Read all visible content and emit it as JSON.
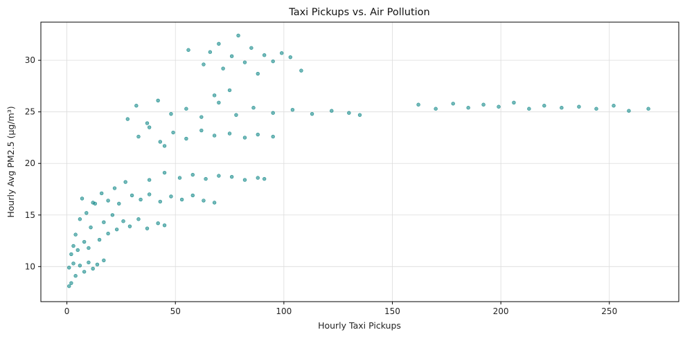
{
  "chart_data": {
    "type": "scatter",
    "title": "Taxi Pickups vs. Air Pollution",
    "xlabel": "Hourly Taxi Pickups",
    "ylabel": "Hourly Avg PM2.5 (µg/m³)",
    "xlim": [
      -12,
      282
    ],
    "ylim": [
      6.6,
      33.7
    ],
    "x_ticks": [
      0,
      50,
      100,
      150,
      200,
      250
    ],
    "y_ticks": [
      10,
      15,
      20,
      25,
      30
    ],
    "grid": true,
    "point_color": "#008080",
    "point_opacity": 0.55,
    "series": [
      {
        "values": [
          {
            "x": 1,
            "y": 9.9
          },
          {
            "x": 2,
            "y": 11.2
          },
          {
            "x": 2,
            "y": 8.4
          },
          {
            "x": 3,
            "y": 10.3
          },
          {
            "x": 4,
            "y": 9.1
          },
          {
            "x": 5,
            "y": 11.6
          },
          {
            "x": 6,
            "y": 10.1
          },
          {
            "x": 8,
            "y": 9.5
          },
          {
            "x": 10,
            "y": 10.4
          },
          {
            "x": 12,
            "y": 9.8
          },
          {
            "x": 14,
            "y": 10.2
          },
          {
            "x": 17,
            "y": 10.6
          },
          {
            "x": 1,
            "y": 8.1
          },
          {
            "x": 3,
            "y": 12.0
          },
          {
            "x": 4,
            "y": 13.1
          },
          {
            "x": 6,
            "y": 14.6
          },
          {
            "x": 8,
            "y": 12.4
          },
          {
            "x": 9,
            "y": 15.2
          },
          {
            "x": 11,
            "y": 13.8
          },
          {
            "x": 13,
            "y": 16.1
          },
          {
            "x": 15,
            "y": 12.6
          },
          {
            "x": 17,
            "y": 14.3
          },
          {
            "x": 19,
            "y": 13.2
          },
          {
            "x": 21,
            "y": 15.0
          },
          {
            "x": 23,
            "y": 13.6
          },
          {
            "x": 26,
            "y": 14.4
          },
          {
            "x": 29,
            "y": 13.9
          },
          {
            "x": 33,
            "y": 14.6
          },
          {
            "x": 37,
            "y": 13.7
          },
          {
            "x": 42,
            "y": 14.2
          },
          {
            "x": 45,
            "y": 14.0
          },
          {
            "x": 10,
            "y": 11.8
          },
          {
            "x": 7,
            "y": 16.6
          },
          {
            "x": 12,
            "y": 16.2
          },
          {
            "x": 16,
            "y": 17.1
          },
          {
            "x": 19,
            "y": 16.4
          },
          {
            "x": 22,
            "y": 17.6
          },
          {
            "x": 24,
            "y": 16.1
          },
          {
            "x": 27,
            "y": 18.2
          },
          {
            "x": 30,
            "y": 16.9
          },
          {
            "x": 34,
            "y": 16.5
          },
          {
            "x": 38,
            "y": 17.0
          },
          {
            "x": 43,
            "y": 16.3
          },
          {
            "x": 48,
            "y": 16.8
          },
          {
            "x": 53,
            "y": 16.5
          },
          {
            "x": 58,
            "y": 16.9
          },
          {
            "x": 63,
            "y": 16.4
          },
          {
            "x": 68,
            "y": 16.2
          },
          {
            "x": 38,
            "y": 18.4
          },
          {
            "x": 45,
            "y": 19.1
          },
          {
            "x": 52,
            "y": 18.6
          },
          {
            "x": 58,
            "y": 18.9
          },
          {
            "x": 64,
            "y": 18.5
          },
          {
            "x": 70,
            "y": 18.8
          },
          {
            "x": 76,
            "y": 18.7
          },
          {
            "x": 82,
            "y": 18.4
          },
          {
            "x": 88,
            "y": 18.6
          },
          {
            "x": 91,
            "y": 18.5
          },
          {
            "x": 28,
            "y": 24.3
          },
          {
            "x": 32,
            "y": 25.6
          },
          {
            "x": 37,
            "y": 23.9
          },
          {
            "x": 42,
            "y": 26.1
          },
          {
            "x": 48,
            "y": 24.8
          },
          {
            "x": 55,
            "y": 25.3
          },
          {
            "x": 62,
            "y": 24.5
          },
          {
            "x": 70,
            "y": 25.9
          },
          {
            "x": 78,
            "y": 24.7
          },
          {
            "x": 86,
            "y": 25.4
          },
          {
            "x": 95,
            "y": 24.9
          },
          {
            "x": 104,
            "y": 25.2
          },
          {
            "x": 113,
            "y": 24.8
          },
          {
            "x": 122,
            "y": 25.1
          },
          {
            "x": 130,
            "y": 24.9
          },
          {
            "x": 135,
            "y": 24.7
          },
          {
            "x": 68,
            "y": 26.6
          },
          {
            "x": 75,
            "y": 27.1
          },
          {
            "x": 33,
            "y": 22.6
          },
          {
            "x": 38,
            "y": 23.5
          },
          {
            "x": 43,
            "y": 22.1
          },
          {
            "x": 49,
            "y": 23.0
          },
          {
            "x": 55,
            "y": 22.4
          },
          {
            "x": 62,
            "y": 23.2
          },
          {
            "x": 68,
            "y": 22.7
          },
          {
            "x": 75,
            "y": 22.9
          },
          {
            "x": 82,
            "y": 22.5
          },
          {
            "x": 88,
            "y": 22.8
          },
          {
            "x": 95,
            "y": 22.6
          },
          {
            "x": 45,
            "y": 21.7
          },
          {
            "x": 63,
            "y": 29.6
          },
          {
            "x": 66,
            "y": 30.8
          },
          {
            "x": 70,
            "y": 31.6
          },
          {
            "x": 72,
            "y": 29.2
          },
          {
            "x": 76,
            "y": 30.4
          },
          {
            "x": 79,
            "y": 32.4
          },
          {
            "x": 82,
            "y": 29.8
          },
          {
            "x": 85,
            "y": 31.2
          },
          {
            "x": 88,
            "y": 28.7
          },
          {
            "x": 91,
            "y": 30.5
          },
          {
            "x": 95,
            "y": 29.9
          },
          {
            "x": 99,
            "y": 30.7
          },
          {
            "x": 103,
            "y": 30.3
          },
          {
            "x": 108,
            "y": 29.0
          },
          {
            "x": 56,
            "y": 31.0
          },
          {
            "x": 162,
            "y": 25.7
          },
          {
            "x": 170,
            "y": 25.3
          },
          {
            "x": 178,
            "y": 25.8
          },
          {
            "x": 185,
            "y": 25.4
          },
          {
            "x": 192,
            "y": 25.7
          },
          {
            "x": 199,
            "y": 25.5
          },
          {
            "x": 206,
            "y": 25.9
          },
          {
            "x": 213,
            "y": 25.3
          },
          {
            "x": 220,
            "y": 25.6
          },
          {
            "x": 228,
            "y": 25.4
          },
          {
            "x": 236,
            "y": 25.5
          },
          {
            "x": 244,
            "y": 25.3
          },
          {
            "x": 252,
            "y": 25.6
          },
          {
            "x": 259,
            "y": 25.1
          },
          {
            "x": 268,
            "y": 25.3
          }
        ]
      }
    ]
  }
}
